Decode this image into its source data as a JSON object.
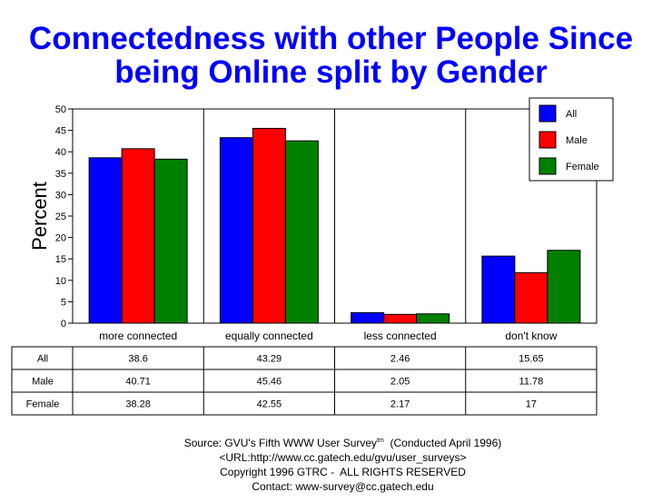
{
  "title_line1": "Connectedness with other People Since",
  "title_line2": "being Online split by Gender",
  "colors": {
    "All": "#0000ff",
    "Male": "#ff0000",
    "Female": "#008000"
  },
  "chart_data": {
    "type": "bar",
    "title": "Connectedness with other People Since being Online split by Gender",
    "xlabel": "",
    "ylabel": "Percent",
    "ylim": [
      0,
      50
    ],
    "yticks": [
      0,
      5,
      10,
      15,
      20,
      25,
      30,
      35,
      40,
      45,
      50
    ],
    "categories": [
      "more connected",
      "equally connected",
      "less connected",
      "don't know"
    ],
    "series": [
      {
        "name": "All",
        "values": [
          38.6,
          43.29,
          2.46,
          15.65
        ],
        "labels": [
          "38.6",
          "43.29",
          "2.46",
          "15.65"
        ]
      },
      {
        "name": "Male",
        "values": [
          40.71,
          45.46,
          2.05,
          11.78
        ],
        "labels": [
          "40.71",
          "45.46",
          "2.05",
          "11.78"
        ]
      },
      {
        "name": "Female",
        "values": [
          38.28,
          42.55,
          2.17,
          17
        ],
        "labels": [
          "38.28",
          "42.55",
          "2.17",
          "17"
        ]
      }
    ],
    "legend_position": "top-right",
    "grid": "vertical category dividers"
  },
  "footer": {
    "source_prefix": "Source: GVU's Fifth WWW User Survey",
    "source_sup": "tm",
    "source_suffix": "  (Conducted April 1996)",
    "url": "<URL:http://www.cc.gatech.edu/gvu/user_surveys>",
    "copyright": "Copyright 1996 GTRC -  ALL RIGHTS RESERVED",
    "contact": "Contact: www-survey@cc.gatech.edu"
  }
}
